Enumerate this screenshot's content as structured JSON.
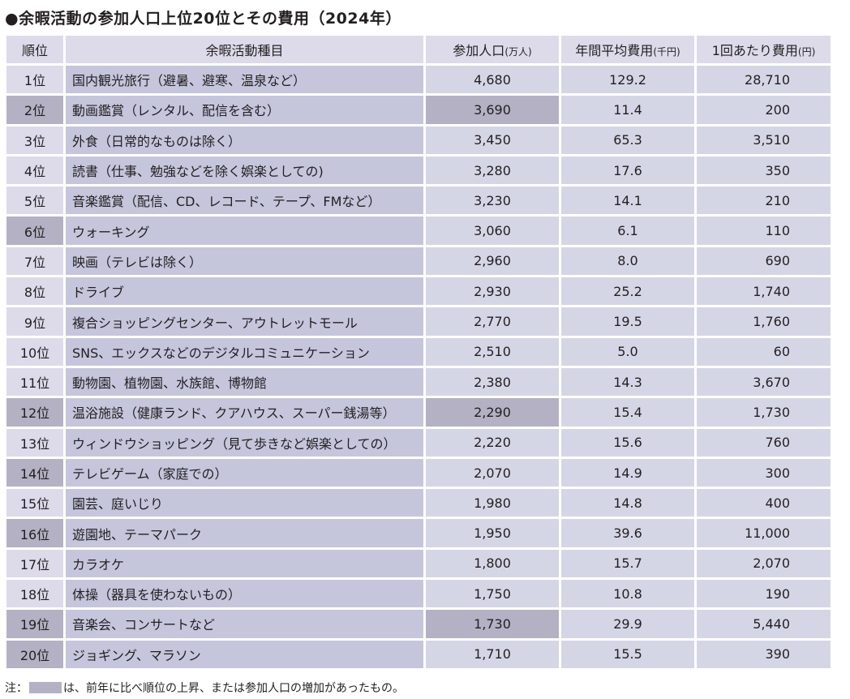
{
  "title": "●余暇活動の参加人口上位20位とその費用（2024年）",
  "table": {
    "headers": {
      "rank": "順位",
      "activity": "余暇活動種目",
      "participants": "参加人口",
      "participants_unit": "(万人)",
      "annual_cost": "年間平均費用",
      "annual_cost_unit": "(千円)",
      "per_visit_cost": "1回あたり費用",
      "per_visit_cost_unit": "(円)"
    },
    "rows": [
      {
        "rank": "1位",
        "activity": "国内観光旅行（避暑、避寒、温泉など）",
        "participants": "4,680",
        "annual_cost": "129.2",
        "per_visit_cost": "28,710",
        "rank_highlight": false,
        "participants_highlight": false
      },
      {
        "rank": "2位",
        "activity": "動画鑑賞（レンタル、配信を含む）",
        "participants": "3,690",
        "annual_cost": "11.4",
        "per_visit_cost": "200",
        "rank_highlight": true,
        "participants_highlight": true
      },
      {
        "rank": "3位",
        "activity": "外食（日常的なものは除く）",
        "participants": "3,450",
        "annual_cost": "65.3",
        "per_visit_cost": "3,510",
        "rank_highlight": false,
        "participants_highlight": false
      },
      {
        "rank": "4位",
        "activity": "読書（仕事、勉強などを除く娯楽としての)",
        "participants": "3,280",
        "annual_cost": "17.6",
        "per_visit_cost": "350",
        "rank_highlight": false,
        "participants_highlight": false
      },
      {
        "rank": "5位",
        "activity": "音楽鑑賞（配信、CD、レコード、テープ、FMなど）",
        "participants": "3,230",
        "annual_cost": "14.1",
        "per_visit_cost": "210",
        "rank_highlight": false,
        "participants_highlight": false
      },
      {
        "rank": "6位",
        "activity": "ウォーキング",
        "participants": "3,060",
        "annual_cost": "6.1",
        "per_visit_cost": "110",
        "rank_highlight": true,
        "participants_highlight": false
      },
      {
        "rank": "7位",
        "activity": "映画（テレビは除く）",
        "participants": "2,960",
        "annual_cost": "8.0",
        "per_visit_cost": "690",
        "rank_highlight": false,
        "participants_highlight": false
      },
      {
        "rank": "8位",
        "activity": "ドライブ",
        "participants": "2,930",
        "annual_cost": "25.2",
        "per_visit_cost": "1,740",
        "rank_highlight": false,
        "participants_highlight": false
      },
      {
        "rank": "9位",
        "activity": "複合ショッピングセンター、アウトレットモール",
        "participants": "2,770",
        "annual_cost": "19.5",
        "per_visit_cost": "1,760",
        "rank_highlight": false,
        "participants_highlight": false
      },
      {
        "rank": "10位",
        "activity": "SNS、エックスなどのデジタルコミュニケーション",
        "participants": "2,510",
        "annual_cost": "5.0",
        "per_visit_cost": "60",
        "rank_highlight": false,
        "participants_highlight": false
      },
      {
        "rank": "11位",
        "activity": "動物園、植物園、水族館、博物館",
        "participants": "2,380",
        "annual_cost": "14.3",
        "per_visit_cost": "3,670",
        "rank_highlight": false,
        "participants_highlight": false
      },
      {
        "rank": "12位",
        "activity": "温浴施設（健康ランド、クアハウス、スーパー銭湯等）",
        "participants": "2,290",
        "annual_cost": "15.4",
        "per_visit_cost": "1,730",
        "rank_highlight": true,
        "participants_highlight": true
      },
      {
        "rank": "13位",
        "activity": "ウィンドウショッピング（見て歩きなど娯楽としての）",
        "participants": "2,220",
        "annual_cost": "15.6",
        "per_visit_cost": "760",
        "rank_highlight": false,
        "participants_highlight": false
      },
      {
        "rank": "14位",
        "activity": "テレビゲーム（家庭での）",
        "participants": "2,070",
        "annual_cost": "14.9",
        "per_visit_cost": "300",
        "rank_highlight": true,
        "participants_highlight": false
      },
      {
        "rank": "15位",
        "activity": "園芸、庭いじり",
        "participants": "1,980",
        "annual_cost": "14.8",
        "per_visit_cost": "400",
        "rank_highlight": false,
        "participants_highlight": false
      },
      {
        "rank": "16位",
        "activity": "遊園地、テーマパーク",
        "participants": "1,950",
        "annual_cost": "39.6",
        "per_visit_cost": "11,000",
        "rank_highlight": true,
        "participants_highlight": false
      },
      {
        "rank": "17位",
        "activity": "カラオケ",
        "participants": "1,800",
        "annual_cost": "15.7",
        "per_visit_cost": "2,070",
        "rank_highlight": false,
        "participants_highlight": false
      },
      {
        "rank": "18位",
        "activity": "体操（器具を使わないもの）",
        "participants": "1,750",
        "annual_cost": "10.8",
        "per_visit_cost": "190",
        "rank_highlight": false,
        "participants_highlight": false
      },
      {
        "rank": "19位",
        "activity": "音楽会、コンサートなど",
        "participants": "1,730",
        "annual_cost": "29.9",
        "per_visit_cost": "5,440",
        "rank_highlight": true,
        "participants_highlight": true
      },
      {
        "rank": "20位",
        "activity": "ジョギング、マラソン",
        "participants": "1,710",
        "annual_cost": "15.5",
        "per_visit_cost": "390",
        "rank_highlight": true,
        "participants_highlight": false
      }
    ]
  },
  "note": {
    "prefix": "注：",
    "text": "は、前年に比べ順位の上昇、または参加人口の増加があったもの。"
  },
  "colors": {
    "header_bg": "#dddbea",
    "activity_bg": "#c5c6dc",
    "value_bg": "#d5d6e5",
    "highlight_bg": "#b3b1c3"
  }
}
